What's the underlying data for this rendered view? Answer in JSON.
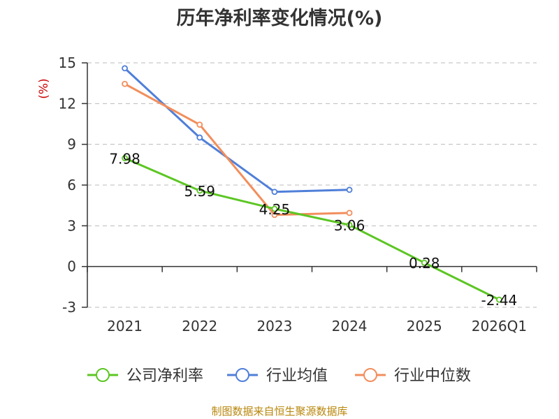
{
  "chart_data": {
    "type": "line",
    "title": "历年净利率变化情况(%)",
    "ylabel": "(%)",
    "categories": [
      "2021",
      "2022",
      "2023",
      "2024",
      "2025",
      "2026Q1"
    ],
    "yticks": [
      "15",
      "12",
      "9",
      "6",
      "3",
      "0",
      "-3"
    ],
    "ylim": [
      -3,
      15
    ],
    "grid": true,
    "legend_position": "bottom",
    "series": [
      {
        "name": "公司净利率",
        "color": "#5cc623",
        "values": [
          7.98,
          5.59,
          4.25,
          3.06,
          0.28,
          -2.44
        ],
        "labels": [
          "7.98",
          "5.59",
          "4.25",
          "3.06",
          "0.28",
          "-2.44"
        ]
      },
      {
        "name": "行业均值",
        "color": "#4f7fd9",
        "values": [
          14.6,
          9.5,
          5.5,
          5.65,
          null,
          null
        ]
      },
      {
        "name": "行业中位数",
        "color": "#f28e5c",
        "values": [
          13.45,
          10.45,
          3.8,
          3.95,
          null,
          null
        ]
      }
    ],
    "source": "制图数据来自恒生聚源数据库"
  }
}
